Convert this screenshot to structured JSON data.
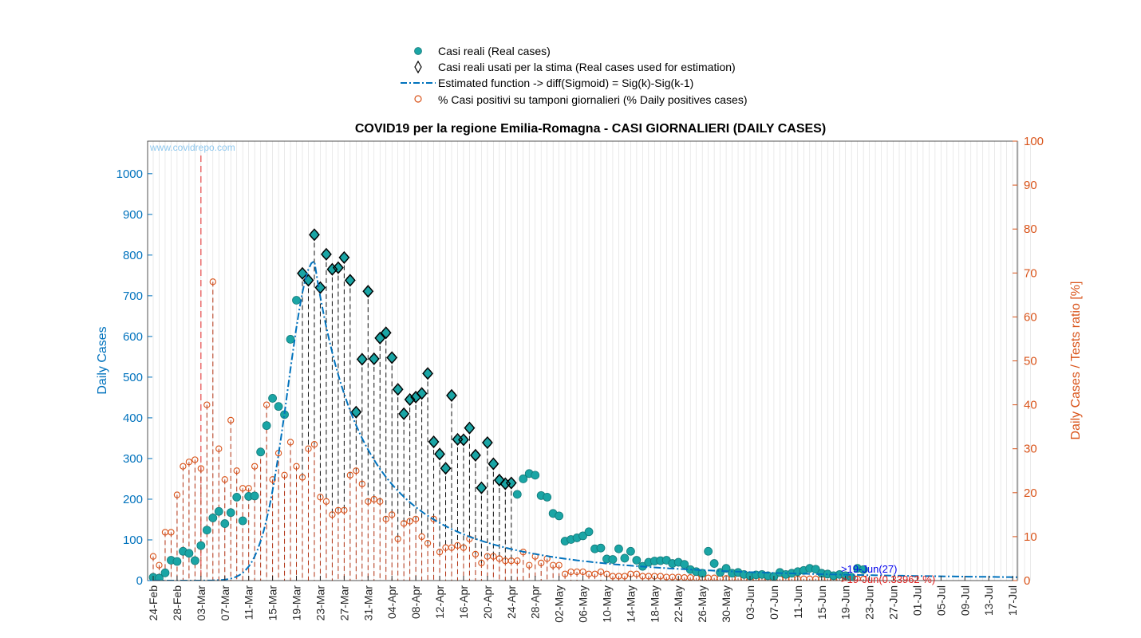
{
  "chart_data": {
    "type": "scatter",
    "title": "COVID19 per la regione Emilia-Romagna - CASI GIORNALIERI (DAILY CASES)",
    "watermark": "www.covidrepo.com",
    "ylabel_left": "Daily Cases",
    "ylabel_right": "Daily Cases / Tests ratio [%]",
    "ylim_left": [
      0,
      1080
    ],
    "ylim_right": [
      0,
      100
    ],
    "yticks_left": [
      0,
      100,
      200,
      300,
      400,
      500,
      600,
      700,
      800,
      900,
      1000
    ],
    "yticks_right": [
      0,
      10,
      20,
      30,
      40,
      50,
      60,
      70,
      80,
      90,
      100
    ],
    "start_date": "24-Feb",
    "x_tick_labels": [
      "24-Feb",
      "28-Feb",
      "03-Mar",
      "07-Mar",
      "11-Mar",
      "15-Mar",
      "19-Mar",
      "23-Mar",
      "27-Mar",
      "31-Mar",
      "04-Apr",
      "08-Apr",
      "12-Apr",
      "16-Apr",
      "20-Apr",
      "24-Apr",
      "28-Apr",
      "02-May",
      "06-May",
      "10-May",
      "14-May",
      "18-May",
      "22-May",
      "26-May",
      "30-May",
      "03-Jun",
      "07-Jun",
      "11-Jun",
      "15-Jun",
      "19-Jun",
      "23-Jun",
      "27-Jun",
      "01-Jul",
      "05-Jul",
      "09-Jul",
      "13-Jul",
      "17-Jul"
    ],
    "x_tick_interval_days": 4,
    "x_end_day": 147,
    "marker_day": 8,
    "legend": {
      "position": "top-center",
      "entries": [
        "Casi reali (Real cases)",
        "Casi reali usati per la stima (Real cases used for estimation)",
        "Estimated function -> diff(Sigmoid) = Sig(k)-Sig(k-1)",
        "% Casi positivi su tamponi giornalieri (% Daily positives cases)"
      ]
    },
    "annotations": {
      "last_cases": ">19-Jun(27)",
      "last_ratio": ">19-Jun(0.33962 %)"
    },
    "colors": {
      "real": "#1aa5a5",
      "estimate_line": "#0072bd",
      "ratio": "#d95319",
      "left_axis": "#0072bd",
      "right_axis": "#d95319",
      "marker_line": "#e02020"
    },
    "series": [
      {
        "name": "Casi reali (Real cases)",
        "values": [
          8,
          6,
          19,
          50,
          47,
          72,
          67,
          49,
          86,
          124,
          154,
          170,
          140,
          167,
          205,
          147,
          207,
          208,
          316,
          381,
          448,
          428,
          408,
          593,
          689,
          755,
          738,
          850,
          720,
          802,
          765,
          769,
          794,
          738,
          414,
          544,
          711,
          545,
          596,
          609,
          548,
          470,
          410,
          445,
          451,
          460,
          509,
          341,
          311,
          276,
          455,
          347,
          346,
          375,
          308,
          228,
          339,
          287,
          247,
          238,
          240,
          212,
          250,
          263,
          259,
          209,
          205,
          165,
          159,
          97,
          101,
          105,
          110,
          120,
          78,
          80,
          53,
          52,
          78,
          55,
          72,
          50,
          35,
          45,
          48,
          49,
          50,
          42,
          45,
          40,
          27,
          22,
          18,
          72,
          42,
          20,
          30,
          18,
          20,
          15,
          12,
          14,
          15,
          12,
          10,
          20,
          15,
          18,
          22,
          25,
          30,
          28,
          18,
          16,
          12,
          15,
          12,
          8,
          30,
          27
        ]
      },
      {
        "name": "Casi reali usati per la stima (Real cases used for estimation)",
        "start_day": 25,
        "values": [
          755,
          738,
          850,
          720,
          802,
          765,
          769,
          794,
          738,
          414,
          544,
          711,
          545,
          596,
          609,
          548,
          470,
          410,
          445,
          451,
          460,
          509,
          341,
          311,
          276,
          455,
          347,
          346,
          375,
          308,
          228,
          339,
          287,
          247,
          238,
          240
        ]
      },
      {
        "name": "% Casi positivi su tamponi giornalieri (% Daily positives cases)",
        "values": [
          5.5,
          3.5,
          11,
          11,
          19.5,
          26,
          27,
          27.5,
          25.5,
          40,
          68,
          30,
          23,
          36.5,
          25,
          21,
          21,
          26,
          29.5,
          40,
          23,
          29,
          24,
          31.5,
          26,
          23.5,
          30,
          31,
          19,
          18,
          15,
          16,
          16,
          24,
          25,
          22,
          18,
          18.5,
          18,
          14,
          15,
          9.5,
          13,
          13.5,
          14,
          10,
          8.5,
          14,
          6.5,
          7.5,
          7.5,
          8,
          7.5,
          9.5,
          6,
          4,
          5.5,
          5.5,
          5,
          4.5,
          4.5,
          4.5,
          6.5,
          3.5,
          5.5,
          4,
          5,
          3.5,
          3.5,
          1.5,
          2,
          2,
          2,
          1.5,
          1.5,
          2,
          1.5,
          1,
          1,
          1,
          1.5,
          1.5,
          1,
          1,
          1,
          1,
          0.8,
          0.8,
          0.8,
          0.7,
          0.7,
          0.6,
          0.6,
          0.6,
          0.6,
          0.5,
          0.5,
          0.5,
          0.5,
          0.5,
          0.5,
          0.5,
          0.5,
          0.5,
          0.5,
          0.4,
          0.4,
          0.4,
          0.4,
          0.4,
          0.4,
          0.4,
          0.4,
          0.4,
          0.4,
          0.4,
          0.4,
          0.4,
          0.4,
          0.34
        ]
      },
      {
        "name": "Estimated function -> diff(Sigmoid) = Sig(k)-Sig(k-1)",
        "peak_day": 27,
        "peak_value": 785,
        "rise_sigma": 4,
        "fall_tau": 19
      }
    ]
  }
}
